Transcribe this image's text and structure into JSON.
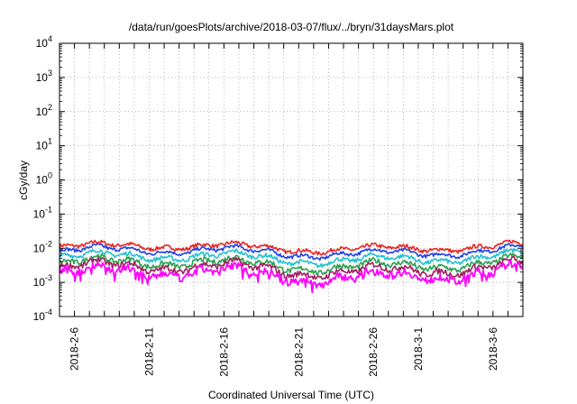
{
  "chart_data": {
    "type": "line",
    "title": "/data/run/goesPlots/archive/2018-03-07/flux/../bryn/31daysMars.plot",
    "xlabel": "Coordinated Universal Time (UTC)",
    "ylabel": "cGy/day",
    "yscale": "log",
    "ylim_exp": [
      -4,
      4
    ],
    "y_tick_exponents": [
      -4,
      -3,
      -2,
      -1,
      0,
      1,
      2,
      3,
      4
    ],
    "y_tick_base": "10",
    "xlim_days": [
      "2018-02-05",
      "2018-03-08"
    ],
    "x_tick_labels": [
      "2018-2-6",
      "2018-2-11",
      "2018-2-16",
      "2018-2-21",
      "2018-2-26",
      "2018-3-1",
      "2018-3-6"
    ],
    "x_tick_dates": [
      "2018-02-06",
      "2018-02-11",
      "2018-02-16",
      "2018-02-21",
      "2018-02-26",
      "2018-03-01",
      "2018-03-06"
    ],
    "grid": true,
    "legend": "none",
    "series": [
      {
        "color": "#e8231f",
        "base": 0.0105,
        "noise": 0.08
      },
      {
        "color": "#1f3fe8",
        "base": 0.0078,
        "noise": 0.07
      },
      {
        "color": "#25c0d0",
        "base": 0.0052,
        "noise": 0.09
      },
      {
        "color": "#2aa050",
        "base": 0.0034,
        "noise": 0.11
      },
      {
        "color": "#a02060",
        "base": 0.0025,
        "noise": 0.12
      },
      {
        "color": "#ff00ff",
        "base": 0.0017,
        "noise": 0.16
      }
    ]
  }
}
